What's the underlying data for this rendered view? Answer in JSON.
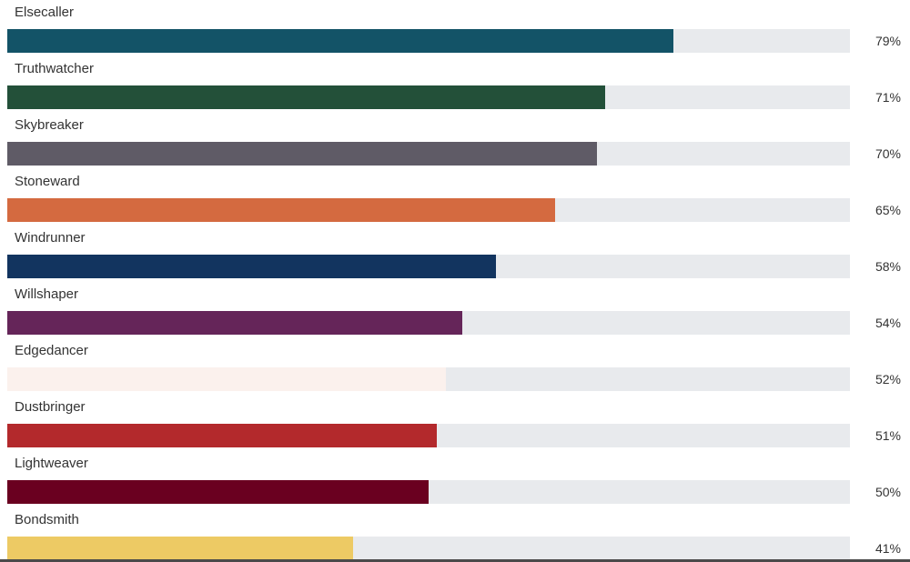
{
  "chart_data": {
    "type": "bar",
    "orientation": "horizontal",
    "title": "",
    "xlim": [
      0,
      100
    ],
    "grid": false,
    "categories": [
      "Elsecaller",
      "Truthwatcher",
      "Skybreaker",
      "Stoneward",
      "Windrunner",
      "Willshaper",
      "Edgedancer",
      "Dustbringer",
      "Lightweaver",
      "Bondsmith"
    ],
    "values": [
      79,
      71,
      70,
      65,
      58,
      54,
      52,
      51,
      50,
      41
    ],
    "value_labels": [
      "79%",
      "71%",
      "70%",
      "65%",
      "58%",
      "54%",
      "52%",
      "51%",
      "50%",
      "41%"
    ],
    "colors": [
      "#135367",
      "#235039",
      "#5f5b66",
      "#d46a40",
      "#12345f",
      "#652559",
      "#fbf1ed",
      "#b3292c",
      "#6a0020",
      "#edca64"
    ],
    "track_color": "#e8eaed"
  }
}
